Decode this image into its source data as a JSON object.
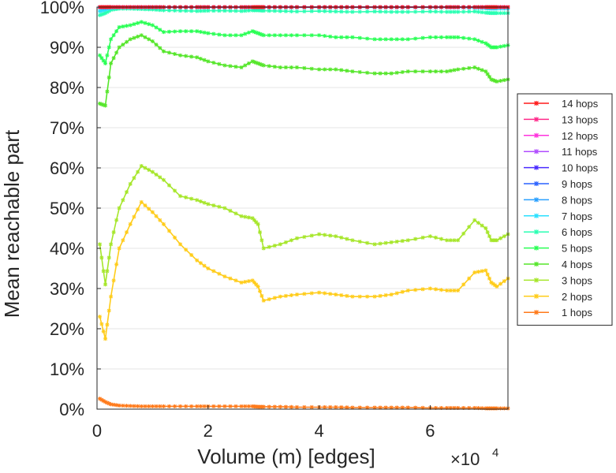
{
  "chart_data": {
    "type": "line",
    "title": "",
    "xlabel": "Volume (m) [edges]",
    "ylabel": "Mean reachable part",
    "x_multiplier_label": "×10",
    "x_multiplier_exp": "4",
    "xlim": [
      0,
      7.4
    ],
    "ylim": [
      0,
      100
    ],
    "x_ticks": [
      0,
      2,
      4,
      6
    ],
    "x_tick_labels": [
      "0",
      "2",
      "4",
      "6"
    ],
    "y_ticks": [
      0,
      10,
      20,
      30,
      40,
      50,
      60,
      70,
      80,
      90,
      100
    ],
    "y_tick_labels": [
      "0%",
      "10%",
      "20%",
      "30%",
      "40%",
      "50%",
      "60%",
      "70%",
      "80%",
      "90%",
      "100%"
    ],
    "grid": "horizontal",
    "legend_position": "right",
    "x": [
      0.05,
      0.15,
      0.25,
      0.4,
      0.6,
      0.8,
      1.0,
      1.2,
      1.5,
      1.8,
      2.0,
      2.3,
      2.6,
      2.8,
      2.9,
      3.0,
      3.3,
      3.6,
      4.0,
      4.3,
      4.6,
      5.0,
      5.3,
      5.6,
      6.0,
      6.3,
      6.5,
      6.8,
      7.0,
      7.1,
      7.2,
      7.4
    ],
    "series": [
      {
        "name": "14 hops",
        "color": "#ff1a1a",
        "values": [
          100,
          100,
          100,
          100,
          100,
          100,
          100,
          100,
          100,
          100,
          100,
          100,
          100,
          100,
          100,
          100,
          100,
          100,
          100,
          100,
          100,
          100,
          100,
          100,
          100,
          100,
          100,
          100,
          100,
          100,
          100,
          100
        ]
      },
      {
        "name": "13 hops",
        "color": "#ff2a8a",
        "values": [
          100,
          100,
          100,
          100,
          100,
          100,
          100,
          100,
          100,
          100,
          100,
          100,
          100,
          100,
          100,
          100,
          100,
          100,
          100,
          100,
          100,
          100,
          100,
          100,
          100,
          100,
          100,
          100,
          100,
          100,
          100,
          100
        ]
      },
      {
        "name": "12 hops",
        "color": "#ff33dd",
        "values": [
          100,
          100,
          100,
          100,
          100,
          100,
          100,
          100,
          100,
          100,
          100,
          100,
          100,
          100,
          100,
          100,
          100,
          100,
          100,
          100,
          100,
          100,
          100,
          100,
          100,
          100,
          100,
          100,
          100,
          100,
          100,
          100
        ]
      },
      {
        "name": "11 hops",
        "color": "#b04dff",
        "values": [
          100,
          100,
          100,
          100,
          100,
          100,
          100,
          100,
          100,
          100,
          100,
          100,
          100,
          100,
          100,
          100,
          100,
          100,
          100,
          100,
          100,
          100,
          100,
          100,
          100,
          100,
          100,
          100,
          100,
          100,
          100,
          100
        ]
      },
      {
        "name": "10 hops",
        "color": "#4a2bff",
        "values": [
          100,
          100,
          100,
          100,
          100,
          100,
          100,
          100,
          100,
          100,
          100,
          100,
          100,
          100,
          100,
          100,
          100,
          100,
          100,
          100,
          100,
          100,
          100,
          100,
          100,
          100,
          100,
          100,
          100,
          100,
          100,
          100
        ]
      },
      {
        "name": "9 hops",
        "color": "#2a62ff",
        "values": [
          100,
          100,
          100,
          100,
          100,
          100,
          100,
          100,
          100,
          100,
          100,
          100,
          100,
          100,
          100,
          100,
          100,
          100,
          100,
          100,
          100,
          100,
          100,
          100,
          100,
          100,
          100,
          100,
          100,
          100,
          100,
          100
        ]
      },
      {
        "name": "8 hops",
        "color": "#2aa0ff",
        "values": [
          99.9,
          99.9,
          100,
          100,
          100,
          100,
          100,
          100,
          100,
          100,
          100,
          100,
          100,
          100,
          100,
          100,
          100,
          100,
          100,
          100,
          100,
          100,
          100,
          100,
          100,
          100,
          100,
          100,
          100,
          100,
          100,
          100
        ]
      },
      {
        "name": "7 hops",
        "color": "#2ae0ff",
        "values": [
          99.0,
          99.4,
          99.8,
          99.9,
          99.9,
          99.9,
          99.9,
          99.9,
          99.9,
          99.9,
          99.9,
          99.9,
          99.9,
          99.9,
          99.9,
          99.9,
          99.9,
          99.9,
          99.9,
          99.9,
          99.9,
          99.9,
          99.9,
          99.9,
          99.9,
          99.9,
          99.9,
          99.8,
          99.7,
          99.6,
          99.6,
          99.6
        ]
      },
      {
        "name": "6 hops",
        "color": "#2affb3",
        "values": [
          98.0,
          98.5,
          99.3,
          99.6,
          99.6,
          99.5,
          99.4,
          99.2,
          99.1,
          99.0,
          99.1,
          99.1,
          99.0,
          99.2,
          99.2,
          99.1,
          99.0,
          98.9,
          99.0,
          98.9,
          98.8,
          98.9,
          98.8,
          98.8,
          98.9,
          98.8,
          98.8,
          98.9,
          98.6,
          98.5,
          98.5,
          98.5
        ]
      },
      {
        "name": "5 hops",
        "color": "#2aff55",
        "values": [
          88.0,
          86.0,
          92.0,
          95.0,
          95.5,
          96.3,
          95.5,
          93.8,
          94.0,
          94.0,
          93.5,
          93.0,
          93.0,
          94.0,
          93.5,
          93.0,
          93.0,
          93.0,
          93.0,
          92.5,
          92.5,
          92.0,
          92.0,
          92.0,
          92.5,
          92.5,
          92.5,
          92.0,
          91.0,
          90.0,
          90.0,
          90.5
        ]
      },
      {
        "name": "4 hops",
        "color": "#55e62a",
        "values": [
          76.0,
          75.5,
          86.0,
          90.0,
          92.0,
          93.0,
          91.5,
          89.0,
          88.0,
          87.5,
          86.5,
          85.5,
          85.0,
          86.5,
          86.0,
          85.5,
          85.0,
          85.0,
          84.5,
          84.5,
          84.0,
          83.5,
          83.5,
          84.0,
          84.0,
          84.0,
          84.5,
          85.0,
          84.0,
          82.0,
          81.5,
          82.0
        ]
      },
      {
        "name": "3 hops",
        "color": "#a6e62a",
        "values": [
          41.0,
          31.0,
          41.0,
          50.0,
          56.0,
          60.5,
          59.0,
          57.0,
          53.0,
          52.0,
          51.0,
          50.0,
          48.0,
          47.5,
          46.0,
          40.0,
          41.0,
          42.5,
          43.5,
          43.0,
          42.0,
          41.0,
          41.5,
          42.0,
          43.0,
          42.0,
          42.0,
          47.0,
          45.0,
          42.0,
          42.0,
          43.5
        ]
      },
      {
        "name": "2 hops",
        "color": "#ffcc1a",
        "values": [
          23.0,
          17.5,
          28.0,
          40.0,
          46.0,
          51.5,
          49.0,
          46.0,
          41.0,
          37.0,
          35.0,
          33.0,
          31.5,
          32.0,
          30.5,
          27.0,
          28.0,
          28.5,
          29.0,
          28.5,
          28.0,
          28.0,
          28.5,
          29.5,
          30.0,
          29.5,
          29.5,
          34.0,
          34.5,
          31.5,
          30.5,
          32.5
        ]
      },
      {
        "name": "1 hops",
        "color": "#ff7a1a",
        "values": [
          2.6,
          1.8,
          1.2,
          0.9,
          0.8,
          0.7,
          0.7,
          0.7,
          0.7,
          0.7,
          0.7,
          0.7,
          0.7,
          0.7,
          0.6,
          0.6,
          0.6,
          0.5,
          0.5,
          0.5,
          0.4,
          0.4,
          0.4,
          0.4,
          0.3,
          0.3,
          0.3,
          0.3,
          0.2,
          0.2,
          0.2,
          0.2
        ]
      }
    ]
  }
}
